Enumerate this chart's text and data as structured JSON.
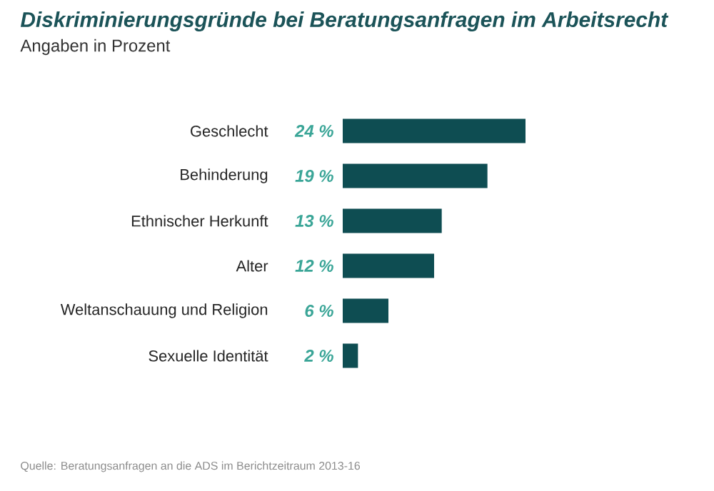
{
  "chart_data": {
    "type": "bar",
    "orientation": "horizontal",
    "title": "Diskriminierungsgründe bei Beratungsanfragen im Arbeitsrecht",
    "subtitle": "Angaben in Prozent",
    "categories": [
      "Geschlecht",
      "Behinderung",
      "Ethnischer Herkunft",
      "Alter",
      "Weltanschauung und Religion",
      "Sexuelle Identität"
    ],
    "values": [
      24,
      19,
      13,
      12,
      6,
      2
    ],
    "value_labels": [
      "24 %",
      "19 %",
      "13 %",
      "12 %",
      "6 %",
      "2 %"
    ],
    "color": "#0e4d52",
    "annotations": [
      "Quelle: Beratungsanfragen an die ADS im Berichtzeitraum 2013-16"
    ]
  }
}
